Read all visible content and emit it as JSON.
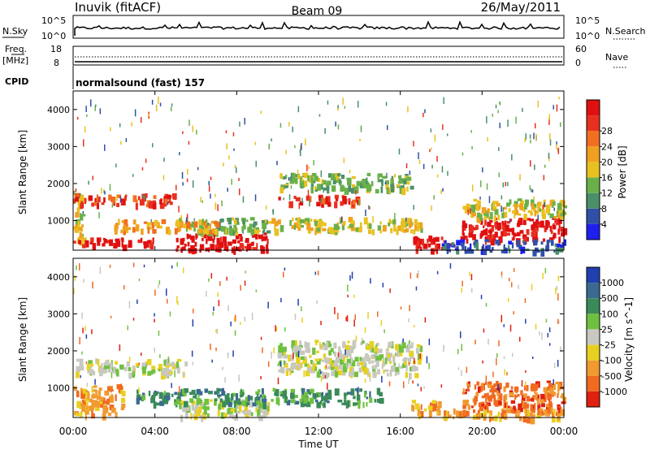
{
  "header": {
    "station": "Inuvik (fitACF)",
    "beam": "Beam 09",
    "date": "26/May/2011"
  },
  "top_panels": {
    "nsky_label": "N.Sky",
    "nsky_ticks": [
      "10^5",
      "10^0"
    ],
    "nsearch_label": "N.Search",
    "nsearch_ticks": [
      "10^5",
      "10^0"
    ],
    "freq_label": "Freq.",
    "freq_unit": "[MHz]",
    "freq_ticks": [
      "18",
      "8"
    ],
    "nave_label": "Nave",
    "nave_ticks": [
      "60",
      "0"
    ],
    "cpid_label": "CPID",
    "cpid_value": "normalsound (fast) 157"
  },
  "x_axis": {
    "label": "Time UT",
    "ticks": [
      "00:00",
      "04:00",
      "08:00",
      "12:00",
      "16:00",
      "20:00",
      "00:00"
    ]
  },
  "y_axis": {
    "label": "Slant Range [km]",
    "ticks": [
      "1000",
      "2000",
      "3000",
      "4000"
    ]
  },
  "colorbars": {
    "power": {
      "label": "Power [dB]",
      "ticks": [
        "4",
        "8",
        "12",
        "16",
        "20",
        "24",
        "28"
      ],
      "colors": [
        "#1f1ff0",
        "#3050a8",
        "#4a8f6a",
        "#6ab04a",
        "#e8c020",
        "#f0a020",
        "#f07020",
        "#e83020",
        "#e01010"
      ]
    },
    "velocity": {
      "label": "Velocity [m s^-1]",
      "ticks": [
        "1000",
        "500",
        "100",
        "25",
        "-25",
        "-100",
        "-500",
        "-1000"
      ],
      "colors": [
        "#2040b0",
        "#3a6a90",
        "#3a8a5a",
        "#70c040",
        "#c8c8c0",
        "#e8d020",
        "#f09a30",
        "#f06a20",
        "#e02010"
      ]
    }
  },
  "chart_data": [
    {
      "type": "line",
      "title": "N.Sky / N.Search",
      "x": [
        "00:00",
        "04:00",
        "08:00",
        "12:00",
        "16:00",
        "20:00",
        "00:00"
      ],
      "series": [
        {
          "name": "N.Sky",
          "values": [
            30,
            60,
            40,
            90,
            60,
            50,
            70
          ]
        }
      ],
      "xlabel": "",
      "ylabel": "N.Sky",
      "scale": "log",
      "ylim": [
        1,
        100000
      ]
    },
    {
      "type": "line",
      "title": "Freq. / Nave",
      "x": [
        "00:00",
        "04:00",
        "08:00",
        "12:00",
        "16:00",
        "20:00",
        "00:00"
      ],
      "series": [
        {
          "name": "Freq.",
          "values": [
            10,
            10,
            10,
            10,
            10,
            10,
            10
          ]
        },
        {
          "name": "Nave",
          "values": [
            27,
            27,
            27,
            27,
            27,
            27,
            27
          ]
        }
      ],
      "xlabel": "",
      "ylabel": "Freq. [MHz]",
      "ylim": [
        8,
        18
      ]
    },
    {
      "type": "heatmap",
      "title": "Power [dB]",
      "xlabel": "Time UT",
      "ylabel": "Slant Range [km]",
      "x_range_hours": [
        0,
        24
      ],
      "ylim": [
        200,
        4500
      ],
      "bands": [
        {
          "t0": 0.0,
          "t1": 0.5,
          "r0": 350,
          "r1": 1900,
          "level": 4
        },
        {
          "t0": 0.0,
          "t1": 5.0,
          "r0": 1450,
          "r1": 1750,
          "level": 7
        },
        {
          "t0": 0.0,
          "t1": 4.0,
          "r0": 350,
          "r1": 550,
          "level": 8
        },
        {
          "t0": 5.0,
          "t1": 9.5,
          "r0": 250,
          "r1": 700,
          "level": 8
        },
        {
          "t0": 5.0,
          "t1": 9.5,
          "r0": 700,
          "r1": 1100,
          "level": 3
        },
        {
          "t0": 2.0,
          "t1": 7.0,
          "r0": 750,
          "r1": 1050,
          "level": 5
        },
        {
          "t0": 10.0,
          "t1": 14.0,
          "r0": 1500,
          "r1": 1700,
          "level": 7
        },
        {
          "t0": 10.0,
          "t1": 16.5,
          "r0": 1850,
          "r1": 2300,
          "level": 3
        },
        {
          "t0": 9.5,
          "t1": 17.0,
          "r0": 750,
          "r1": 1100,
          "level": 4
        },
        {
          "t0": 16.5,
          "t1": 19.0,
          "r0": 250,
          "r1": 600,
          "level": 8
        },
        {
          "t0": 19.0,
          "t1": 24.0,
          "r0": 500,
          "r1": 1100,
          "level": 8
        },
        {
          "t0": 19.0,
          "t1": 24.0,
          "r0": 1100,
          "r1": 1600,
          "level": 4
        },
        {
          "t0": 18.0,
          "t1": 24.0,
          "r0": 200,
          "r1": 500,
          "level": 1
        }
      ]
    },
    {
      "type": "heatmap",
      "title": "Velocity [m s^-1]",
      "xlabel": "Time UT",
      "ylabel": "Slant Range [km]",
      "x_range_hours": [
        0,
        24
      ],
      "ylim": [
        200,
        4500
      ],
      "bands": [
        {
          "t0": 0.0,
          "t1": 5.5,
          "r0": 1400,
          "r1": 1800,
          "level": 4
        },
        {
          "t0": 0.0,
          "t1": 2.5,
          "r0": 300,
          "r1": 1100,
          "level": 6
        },
        {
          "t0": 5.0,
          "t1": 9.5,
          "r0": 250,
          "r1": 700,
          "level": 4
        },
        {
          "t0": 8.0,
          "t1": 15.0,
          "r0": 600,
          "r1": 1000,
          "level": 2
        },
        {
          "t0": 3.0,
          "t1": 8.0,
          "r0": 600,
          "r1": 1000,
          "level": 2
        },
        {
          "t0": 10.0,
          "t1": 17.0,
          "r0": 1400,
          "r1": 2300,
          "level": 4
        },
        {
          "t0": 16.5,
          "t1": 18.0,
          "r0": 300,
          "r1": 700,
          "level": 6
        },
        {
          "t0": 19.0,
          "t1": 24.0,
          "r0": 400,
          "r1": 1200,
          "level": 7
        },
        {
          "t0": 18.0,
          "t1": 24.0,
          "r0": 200,
          "r1": 450,
          "level": 6
        }
      ]
    }
  ]
}
